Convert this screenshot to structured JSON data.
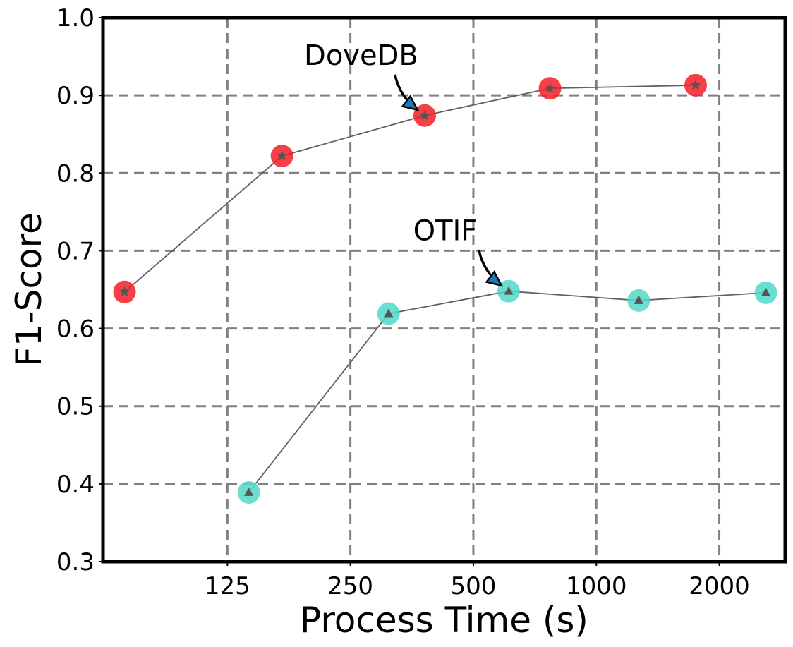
{
  "chart_data": {
    "type": "scatter",
    "title": "",
    "xlabel": "Process Time (s)",
    "ylabel": "F1-Score",
    "x_scale": "log2",
    "xlim": [
      62,
      2900
    ],
    "ylim": [
      0.3,
      1.0
    ],
    "x_ticks": [
      125,
      250,
      500,
      1000,
      2000
    ],
    "x_tick_labels": [
      "125",
      "250",
      "500",
      "1000",
      "2000"
    ],
    "y_ticks": [
      0.3,
      0.4,
      0.5,
      0.6,
      0.7,
      0.8,
      0.9,
      1.0
    ],
    "y_tick_labels": [
      "0.3",
      "0.4",
      "0.5",
      "0.6",
      "0.7",
      "0.8",
      "0.9",
      "1.0"
    ],
    "grid": true,
    "series": [
      {
        "color": "#f21f26",
        "marker": "star",
        "x": [
          70,
          170,
          380,
          770,
          1750
        ],
        "y": [
          0.647,
          0.822,
          0.874,
          0.909,
          0.913
        ],
        "annotation": {
          "text": "DoveDB",
          "point_index": 2
        }
      },
      {
        "color": "#4fd8c9",
        "marker": "triangle",
        "x": [
          141,
          310,
          610,
          1270,
          2600
        ],
        "y": [
          0.389,
          0.619,
          0.648,
          0.636,
          0.646
        ],
        "annotation": {
          "text": "OTIF",
          "point_index": 2
        }
      }
    ]
  }
}
